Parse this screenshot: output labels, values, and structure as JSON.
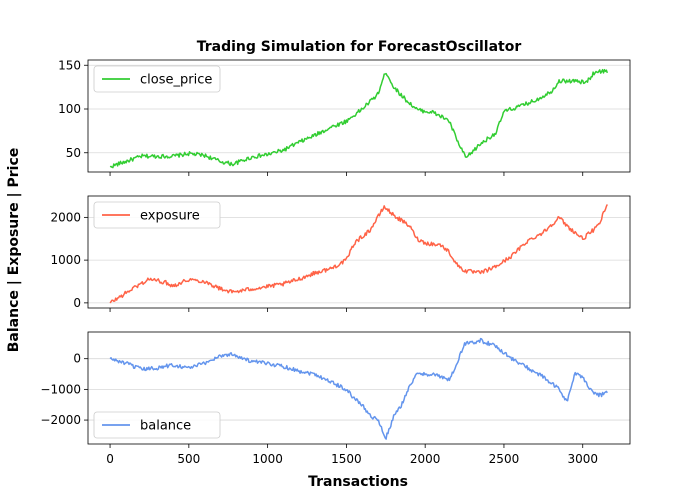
{
  "chart_data": {
    "type": "line",
    "title": "Trading Simulation for ForecastOscillator",
    "xlabel": "Transactions",
    "ylabel": "Balance | Exposure | Price",
    "x_range": [
      0,
      3160
    ],
    "x_ticks": [
      0,
      500,
      1000,
      1500,
      2000,
      2500,
      3000
    ],
    "x_tick_labels": [
      "0",
      "500",
      "1000",
      "1500",
      "2000",
      "2500",
      "3000"
    ],
    "grid": "horizontal",
    "legend_placement": "top-left",
    "panels": [
      {
        "series_name": "close_price",
        "color": "#32cd32",
        "legend_placement": "top-left",
        "ylim": [
          28,
          156
        ],
        "y_ticks": [
          50,
          100,
          150
        ],
        "y_tick_labels": [
          "50",
          "100",
          "150"
        ],
        "points": [
          [
            0,
            34
          ],
          [
            100,
            40
          ],
          [
            200,
            46
          ],
          [
            300,
            46
          ],
          [
            400,
            46
          ],
          [
            500,
            49
          ],
          [
            600,
            47
          ],
          [
            700,
            40
          ],
          [
            780,
            37
          ],
          [
            900,
            45
          ],
          [
            1000,
            48
          ],
          [
            1100,
            53
          ],
          [
            1200,
            62
          ],
          [
            1300,
            70
          ],
          [
            1400,
            79
          ],
          [
            1500,
            86
          ],
          [
            1600,
            100
          ],
          [
            1700,
            117
          ],
          [
            1750,
            143
          ],
          [
            1800,
            125
          ],
          [
            1880,
            110
          ],
          [
            1950,
            99
          ],
          [
            2050,
            96
          ],
          [
            2150,
            87
          ],
          [
            2220,
            57
          ],
          [
            2260,
            44
          ],
          [
            2350,
            60
          ],
          [
            2450,
            73
          ],
          [
            2500,
            97
          ],
          [
            2600,
            103
          ],
          [
            2700,
            110
          ],
          [
            2800,
            120
          ],
          [
            2850,
            132
          ],
          [
            2950,
            132
          ],
          [
            3020,
            130
          ],
          [
            3080,
            143
          ],
          [
            3160,
            143
          ]
        ]
      },
      {
        "series_name": "exposure",
        "color": "#ff6347",
        "legend_placement": "top-left",
        "ylim": [
          -120,
          2500
        ],
        "y_ticks": [
          0,
          1000,
          2000
        ],
        "y_tick_labels": [
          "0",
          "1000",
          "2000"
        ],
        "points": [
          [
            0,
            0
          ],
          [
            80,
            180
          ],
          [
            150,
            350
          ],
          [
            250,
            560
          ],
          [
            350,
            480
          ],
          [
            400,
            400
          ],
          [
            500,
            550
          ],
          [
            600,
            500
          ],
          [
            700,
            330
          ],
          [
            780,
            250
          ],
          [
            900,
            330
          ],
          [
            1000,
            380
          ],
          [
            1100,
            440
          ],
          [
            1200,
            560
          ],
          [
            1300,
            700
          ],
          [
            1400,
            800
          ],
          [
            1500,
            1000
          ],
          [
            1550,
            1400
          ],
          [
            1650,
            1700
          ],
          [
            1740,
            2250
          ],
          [
            1800,
            2050
          ],
          [
            1900,
            1800
          ],
          [
            1950,
            1500
          ],
          [
            2000,
            1400
          ],
          [
            2100,
            1350
          ],
          [
            2150,
            1200
          ],
          [
            2200,
            900
          ],
          [
            2250,
            750
          ],
          [
            2350,
            700
          ],
          [
            2450,
            850
          ],
          [
            2550,
            1100
          ],
          [
            2650,
            1450
          ],
          [
            2750,
            1650
          ],
          [
            2850,
            2000
          ],
          [
            2900,
            1800
          ],
          [
            3000,
            1500
          ],
          [
            3100,
            1800
          ],
          [
            3160,
            2350
          ]
        ]
      },
      {
        "series_name": "balance",
        "color": "#6495ed",
        "legend_placement": "bottom-left",
        "ylim": [
          -2780,
          870
        ],
        "y_ticks": [
          0,
          -1000,
          -2000
        ],
        "y_tick_labels": [
          "0",
          "−1000",
          "−2000"
        ],
        "points": [
          [
            0,
            0
          ],
          [
            100,
            -150
          ],
          [
            200,
            -350
          ],
          [
            300,
            -300
          ],
          [
            400,
            -200
          ],
          [
            500,
            -300
          ],
          [
            600,
            -150
          ],
          [
            700,
            100
          ],
          [
            780,
            150
          ],
          [
            850,
            0
          ],
          [
            900,
            -100
          ],
          [
            1000,
            -150
          ],
          [
            1100,
            -250
          ],
          [
            1200,
            -400
          ],
          [
            1300,
            -500
          ],
          [
            1400,
            -750
          ],
          [
            1500,
            -1000
          ],
          [
            1550,
            -1300
          ],
          [
            1600,
            -1500
          ],
          [
            1650,
            -1850
          ],
          [
            1700,
            -2000
          ],
          [
            1750,
            -2600
          ],
          [
            1800,
            -1900
          ],
          [
            1850,
            -1500
          ],
          [
            1900,
            -900
          ],
          [
            1950,
            -500
          ],
          [
            2050,
            -500
          ],
          [
            2150,
            -700
          ],
          [
            2200,
            -200
          ],
          [
            2250,
            500
          ],
          [
            2300,
            520
          ],
          [
            2350,
            600
          ],
          [
            2450,
            400
          ],
          [
            2550,
            0
          ],
          [
            2650,
            -300
          ],
          [
            2750,
            -600
          ],
          [
            2850,
            -1000
          ],
          [
            2900,
            -1400
          ],
          [
            2950,
            -500
          ],
          [
            3000,
            -600
          ],
          [
            3050,
            -1000
          ],
          [
            3100,
            -1200
          ],
          [
            3160,
            -1100
          ]
        ]
      }
    ]
  }
}
